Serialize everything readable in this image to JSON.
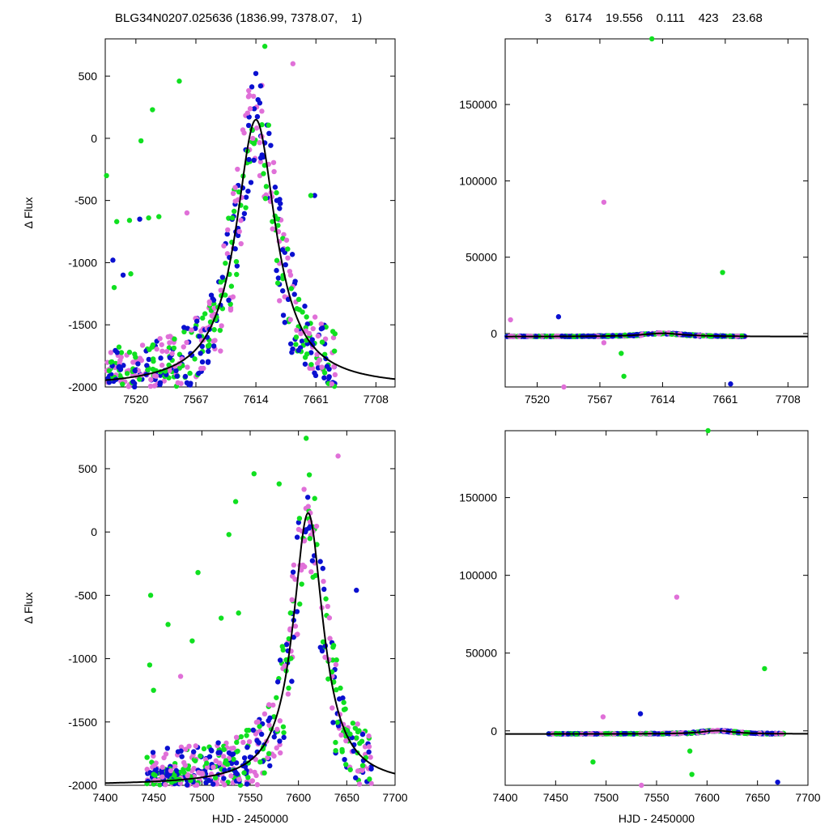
{
  "header": {
    "left": "BLG34N0207.025636 (1836.99, 7378.07,    1)",
    "right": "3    6174    19.556    0.111    423    23.68"
  },
  "colors": {
    "pink": "#e070d8",
    "blue": "#0a10d0",
    "green": "#10e020",
    "model": "#000000"
  },
  "chart_data": [
    {
      "id": "top-left",
      "type": "scatter",
      "xlim": [
        7496,
        7723
      ],
      "ylim": [
        -2000,
        800
      ],
      "xticks": [
        7520,
        7567,
        7614,
        7661,
        7708
      ],
      "yticks": [
        -2000,
        -1500,
        -1000,
        -500,
        0,
        500
      ],
      "xlabel": "",
      "ylabel": "Δ Flux",
      "model": {
        "t0": 7614,
        "width": 19,
        "base": -2000,
        "peak": 150
      },
      "outliers": [
        {
          "x": 7497,
          "y": -300,
          "c": "green"
        },
        {
          "x": 7502,
          "y": -980,
          "c": "blue"
        },
        {
          "x": 7503,
          "y": -1200,
          "c": "green"
        },
        {
          "x": 7505,
          "y": -670,
          "c": "green"
        },
        {
          "x": 7510,
          "y": -1100,
          "c": "blue"
        },
        {
          "x": 7515,
          "y": -660,
          "c": "green"
        },
        {
          "x": 7516,
          "y": -1090,
          "c": "green"
        },
        {
          "x": 7523,
          "y": -650,
          "c": "blue"
        },
        {
          "x": 7524,
          "y": -20,
          "c": "green"
        },
        {
          "x": 7530,
          "y": -640,
          "c": "green"
        },
        {
          "x": 7533,
          "y": 230,
          "c": "green"
        },
        {
          "x": 7538,
          "y": -630,
          "c": "green"
        },
        {
          "x": 7554,
          "y": 460,
          "c": "green"
        },
        {
          "x": 7560,
          "y": -600,
          "c": "pink"
        },
        {
          "x": 7621,
          "y": 740,
          "c": "green"
        },
        {
          "x": 7643,
          "y": 600,
          "c": "pink"
        },
        {
          "x": 7660,
          "y": -460,
          "c": "blue"
        },
        {
          "x": 7657,
          "y": -460,
          "c": "green"
        }
      ]
    },
    {
      "id": "top-right",
      "type": "scatter",
      "xlim": [
        7496,
        7723
      ],
      "ylim": [
        -35000,
        193000
      ],
      "xticks": [
        7520,
        7567,
        7614,
        7661,
        7708
      ],
      "yticks": [
        0,
        50000,
        100000,
        150000
      ],
      "xlabel": "",
      "ylabel": "",
      "model": {
        "t0": 7614,
        "width": 19,
        "base": -2000,
        "peak": 150
      },
      "outliers": [
        {
          "x": 7606,
          "y": 193000,
          "c": "green"
        },
        {
          "x": 7570,
          "y": 86000,
          "c": "pink"
        },
        {
          "x": 7659,
          "y": 40000,
          "c": "green"
        },
        {
          "x": 7500,
          "y": 9000,
          "c": "pink"
        },
        {
          "x": 7536,
          "y": 11000,
          "c": "blue"
        },
        {
          "x": 7583,
          "y": -13000,
          "c": "green"
        },
        {
          "x": 7585,
          "y": -28000,
          "c": "green"
        },
        {
          "x": 7540,
          "y": -35000,
          "c": "pink"
        },
        {
          "x": 7665,
          "y": -33000,
          "c": "blue"
        },
        {
          "x": 7570,
          "y": -6000,
          "c": "pink"
        }
      ]
    },
    {
      "id": "bottom-left",
      "type": "scatter",
      "xlim": [
        7400,
        7700
      ],
      "ylim": [
        -2000,
        800
      ],
      "xticks": [
        7400,
        7450,
        7500,
        7550,
        7600,
        7650,
        7700
      ],
      "yticks": [
        -2000,
        -1500,
        -1000,
        -500,
        0,
        500
      ],
      "xlabel": "HJD - 2450000",
      "ylabel": "Δ Flux",
      "model": {
        "t0": 7610,
        "width": 19,
        "base": -2000,
        "peak": 150
      },
      "outliers": [
        {
          "x": 7447,
          "y": -500,
          "c": "green"
        },
        {
          "x": 7446,
          "y": -1050,
          "c": "green"
        },
        {
          "x": 7450,
          "y": -1250,
          "c": "green"
        },
        {
          "x": 7465,
          "y": -730,
          "c": "green"
        },
        {
          "x": 7490,
          "y": -860,
          "c": "green"
        },
        {
          "x": 7496,
          "y": -320,
          "c": "green"
        },
        {
          "x": 7520,
          "y": -680,
          "c": "green"
        },
        {
          "x": 7528,
          "y": -20,
          "c": "green"
        },
        {
          "x": 7535,
          "y": 240,
          "c": "green"
        },
        {
          "x": 7538,
          "y": -640,
          "c": "green"
        },
        {
          "x": 7554,
          "y": 460,
          "c": "green"
        },
        {
          "x": 7608,
          "y": 740,
          "c": "green"
        },
        {
          "x": 7641,
          "y": 600,
          "c": "pink"
        },
        {
          "x": 7660,
          "y": -460,
          "c": "blue"
        },
        {
          "x": 7580,
          "y": 380,
          "c": "green"
        },
        {
          "x": 7478,
          "y": -1140,
          "c": "pink"
        }
      ]
    },
    {
      "id": "bottom-right",
      "type": "scatter",
      "xlim": [
        7400,
        7700
      ],
      "ylim": [
        -35000,
        193000
      ],
      "xticks": [
        7400,
        7450,
        7500,
        7550,
        7600,
        7650,
        7700
      ],
      "yticks": [
        0,
        50000,
        100000,
        150000
      ],
      "xlabel": "HJD - 2450000",
      "ylabel": "",
      "model": {
        "t0": 7610,
        "width": 19,
        "base": -2000,
        "peak": 150
      },
      "outliers": [
        {
          "x": 7601,
          "y": 193000,
          "c": "green"
        },
        {
          "x": 7570,
          "y": 86000,
          "c": "pink"
        },
        {
          "x": 7657,
          "y": 40000,
          "c": "green"
        },
        {
          "x": 7497,
          "y": 9000,
          "c": "pink"
        },
        {
          "x": 7534,
          "y": 11000,
          "c": "blue"
        },
        {
          "x": 7487,
          "y": -20000,
          "c": "green"
        },
        {
          "x": 7583,
          "y": -13000,
          "c": "green"
        },
        {
          "x": 7585,
          "y": -28000,
          "c": "green"
        },
        {
          "x": 7535,
          "y": -35000,
          "c": "pink"
        },
        {
          "x": 7670,
          "y": -33000,
          "c": "blue"
        }
      ]
    }
  ]
}
